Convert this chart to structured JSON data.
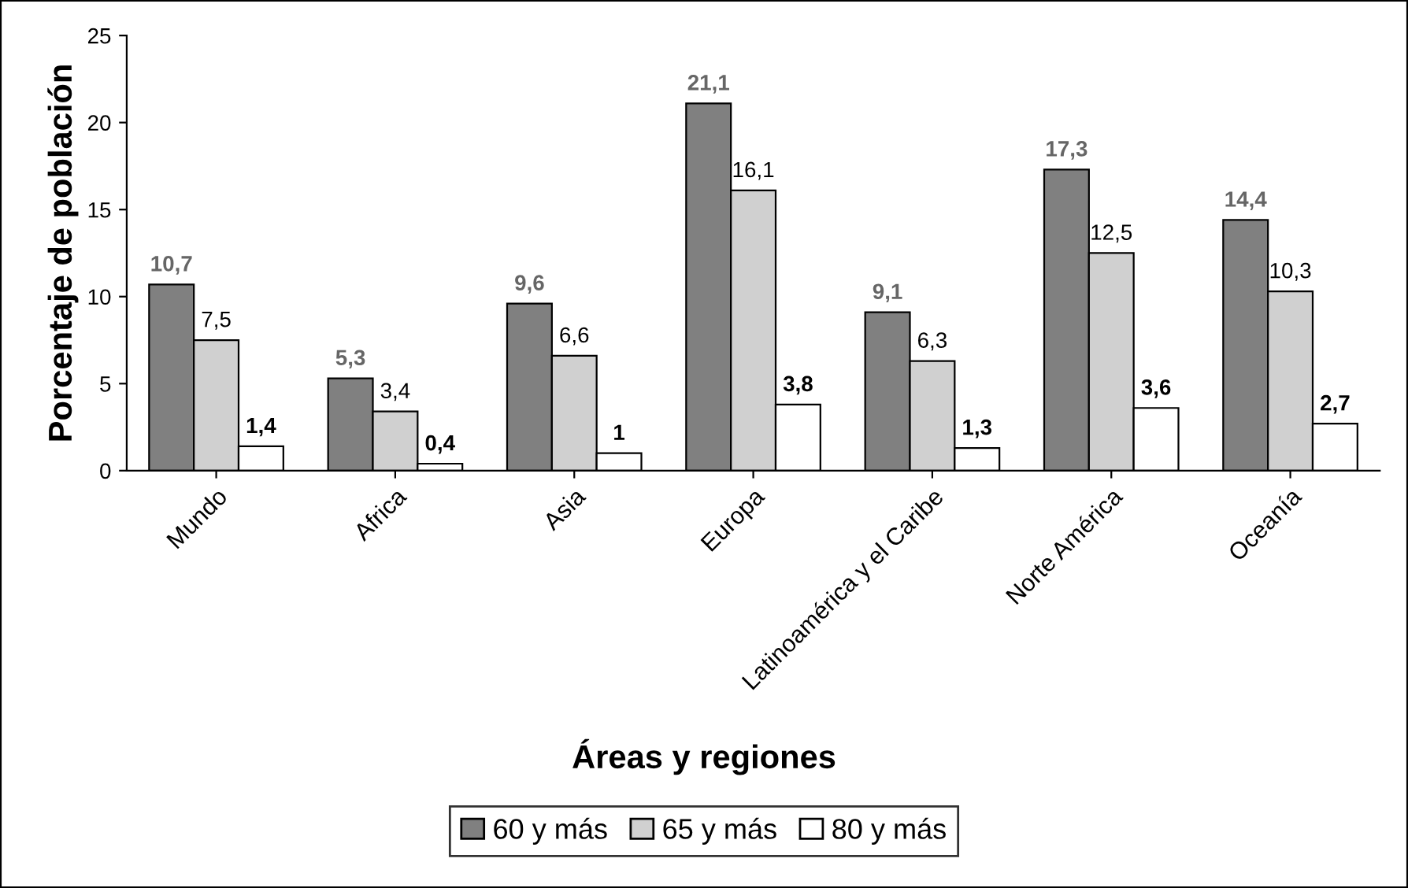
{
  "chart_data": {
    "type": "bar",
    "xlabel": "Áreas y regiones",
    "ylabel": "Porcentaje de población",
    "categories": [
      "Mundo",
      "Africa",
      "Asia",
      "Europa",
      "Latinoamérica y el Caribe",
      "Norte América",
      "Oceanía"
    ],
    "series": [
      {
        "name": "60 y más",
        "color": "#808080",
        "values": [
          10.7,
          5.3,
          9.6,
          21.1,
          9.1,
          17.3,
          14.4
        ],
        "value_labels": [
          "10,7",
          "5,3",
          "9,6",
          "21,1",
          "9,1",
          "17,3",
          "14,4"
        ]
      },
      {
        "name": "65 y más",
        "color": "#d0d0d0",
        "values": [
          7.5,
          3.4,
          6.6,
          16.1,
          6.3,
          12.5,
          10.3
        ],
        "value_labels": [
          "7,5",
          "3,4",
          "6,6",
          "16,1",
          "6,3",
          "12,5",
          "10,3"
        ]
      },
      {
        "name": "80 y más",
        "color": "#ffffff",
        "values": [
          1.4,
          0.4,
          1,
          3.8,
          1.3,
          3.6,
          2.7
        ],
        "value_labels": [
          "1,4",
          "0,4",
          "1",
          "3,8",
          "1,3",
          "3,6",
          "2,7"
        ]
      }
    ],
    "ylim": [
      0,
      25
    ],
    "yticks": [
      0,
      5,
      10,
      15,
      20,
      25
    ],
    "grid": false,
    "legend": "bottom"
  }
}
